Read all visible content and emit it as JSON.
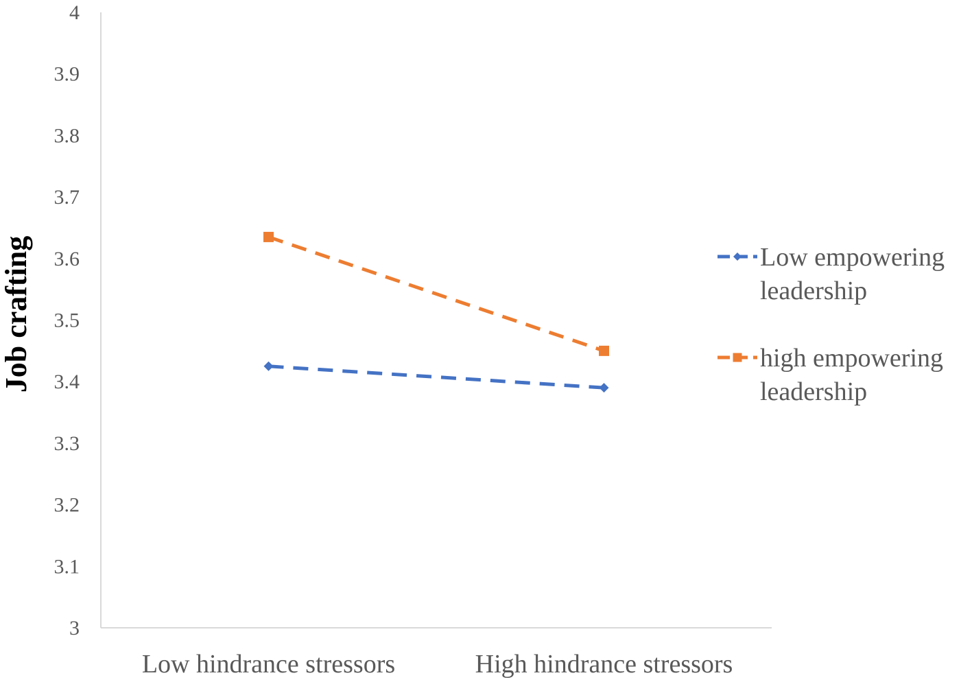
{
  "chart_data": {
    "type": "line",
    "title": "",
    "xlabel": "",
    "ylabel": "Job crafting",
    "categories": [
      "Low hindrance stressors",
      "High hindrance stressors"
    ],
    "ylim": [
      3,
      4
    ],
    "yticks": [
      "3",
      "3.1",
      "3.2",
      "3.3",
      "3.4",
      "3.5",
      "3.6",
      "3.7",
      "3.8",
      "3.9",
      "4"
    ],
    "grid": false,
    "legend_position": "right",
    "series": [
      {
        "name": "Low empowering leadership",
        "legend_lines": [
          "Low empowering",
          "leadership"
        ],
        "values": [
          3.425,
          3.39
        ],
        "color": "#4472C4",
        "marker": "diamond",
        "line_style": "dashed"
      },
      {
        "name": "high empowering leadership",
        "legend_lines": [
          "high empowering",
          "leadership"
        ],
        "values": [
          3.635,
          3.45
        ],
        "color": "#ED7D31",
        "marker": "square",
        "line_style": "dashed"
      }
    ]
  }
}
